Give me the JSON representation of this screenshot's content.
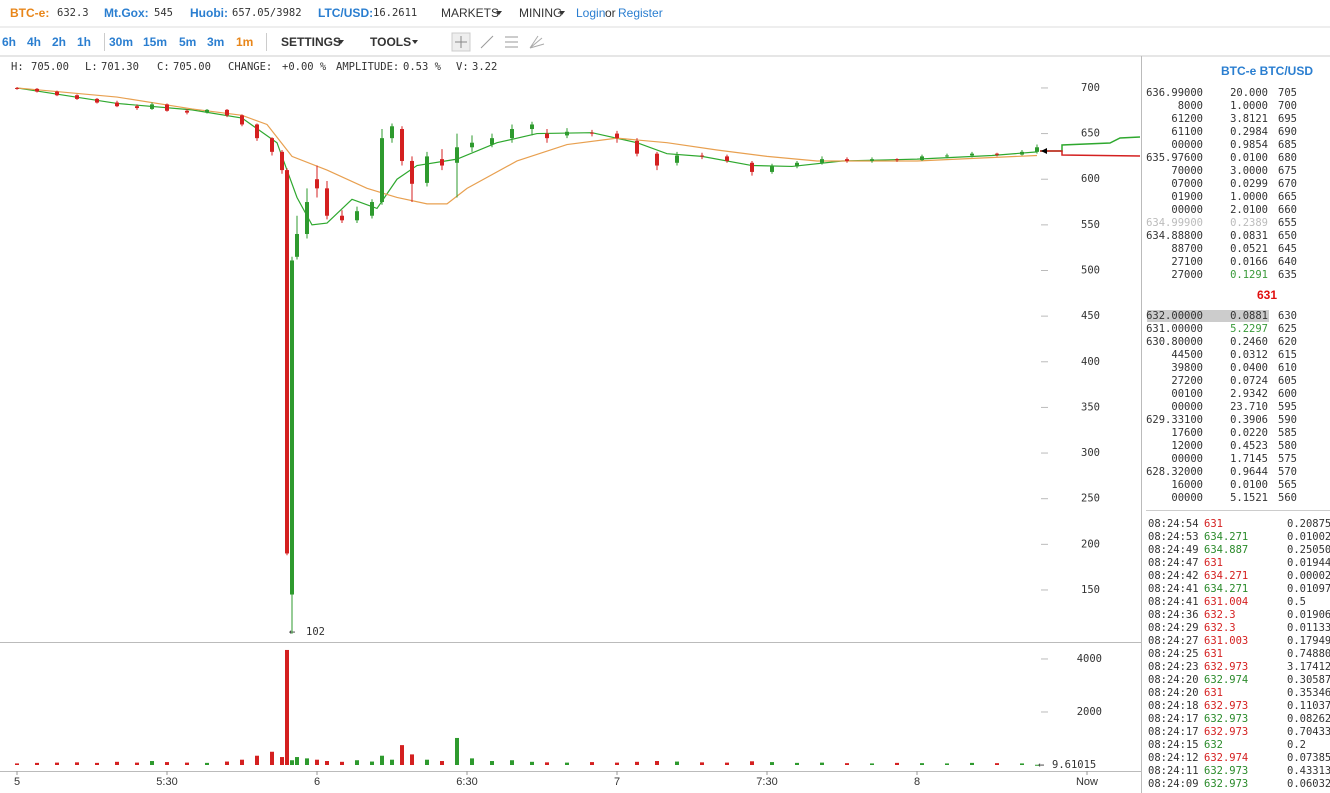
{
  "tickers": [
    {
      "label": "BTC-e:",
      "value": "632.3"
    },
    {
      "label": "Mt.Gox:",
      "value": "545"
    },
    {
      "label": "Huobi:",
      "value": "657.05/3982"
    },
    {
      "label": "LTC/USD:",
      "value": "16.2611"
    }
  ],
  "nav": {
    "markets": "MARKETS",
    "mining": "MINING",
    "login": "Login",
    "or": "or",
    "register": "Register"
  },
  "periods": [
    "6h",
    "4h",
    "2h",
    "1h",
    "30m",
    "15m",
    "5m",
    "3m",
    "1m"
  ],
  "active_period": "1m",
  "settings": "SETTINGS",
  "tools": "TOOLS",
  "info": [
    {
      "label": "H:",
      "value": "705.00"
    },
    {
      "label": "L:",
      "value": "701.30"
    },
    {
      "label": "C:",
      "value": "705.00"
    },
    {
      "label": "CHANGE:",
      "value": "+0.00 %"
    },
    {
      "label": "AMPLITUDE:",
      "value": "0.53 %"
    },
    {
      "label": "V:",
      "value": "3.22"
    }
  ],
  "chart_data": {
    "type": "candlestick",
    "x": [
      0,
      4,
      8,
      12,
      16,
      20,
      24,
      27,
      30,
      34,
      38,
      42,
      45,
      48,
      51,
      53,
      54,
      55,
      56,
      58,
      60,
      62,
      65,
      68,
      71,
      73,
      75,
      77,
      79,
      82,
      85,
      88,
      91,
      95,
      99,
      103,
      106,
      110,
      115,
      120,
      124,
      128,
      132,
      137,
      142,
      147,
      151,
      156,
      161,
      166,
      171,
      176,
      181,
      186,
      191,
      196,
      201,
      204
    ],
    "open": [
      700,
      699,
      696,
      692,
      688,
      684,
      680,
      677,
      682,
      675,
      673,
      676,
      670,
      660,
      645,
      630,
      610,
      145,
      515,
      540,
      600,
      590,
      560,
      555,
      560,
      575,
      645,
      655,
      620,
      596,
      622,
      618,
      635,
      638,
      645,
      655,
      650,
      648,
      651,
      650,
      642,
      628,
      618,
      626,
      625,
      618,
      608,
      614,
      618,
      622,
      620,
      622,
      621,
      625,
      626,
      628,
      627,
      630
    ],
    "close": [
      699,
      696,
      692,
      688,
      684,
      680,
      678,
      682,
      675,
      673,
      676,
      670,
      660,
      645,
      630,
      610,
      190,
      511,
      540,
      575,
      590,
      560,
      555,
      565,
      575,
      645,
      658,
      620,
      595,
      625,
      615,
      635,
      640,
      645,
      655,
      660,
      645,
      652,
      650,
      645,
      628,
      615,
      626,
      625,
      620,
      608,
      614,
      618,
      622,
      620,
      622,
      621,
      625,
      626,
      628,
      627,
      630,
      635
    ],
    "high": [
      701,
      700,
      697,
      693,
      689,
      686,
      682,
      684,
      683,
      677,
      677,
      677,
      671,
      661,
      646,
      632,
      612,
      515,
      560,
      590,
      615,
      598,
      566,
      570,
      578,
      655,
      661,
      658,
      625,
      630,
      633,
      650,
      648,
      650,
      660,
      663,
      655,
      656,
      654,
      653,
      645,
      630,
      630,
      629,
      627,
      620,
      617,
      620,
      625,
      624,
      624,
      623,
      627,
      628,
      630,
      629,
      632,
      638
    ],
    "low": [
      698,
      695,
      691,
      687,
      683,
      679,
      676,
      676,
      674,
      671,
      672,
      668,
      658,
      642,
      626,
      606,
      188,
      102,
      512,
      535,
      580,
      556,
      552,
      552,
      557,
      572,
      640,
      615,
      575,
      592,
      610,
      580,
      630,
      635,
      640,
      648,
      640,
      645,
      647,
      640,
      625,
      610,
      615,
      622,
      618,
      604,
      606,
      612,
      616,
      618,
      618,
      619,
      620,
      623,
      624,
      625,
      626,
      628
    ],
    "volume": [
      60,
      80,
      90,
      100,
      80,
      120,
      90,
      150,
      110,
      90,
      80,
      130,
      200,
      350,
      500,
      300,
      4340,
      180,
      300,
      250,
      200,
      150,
      120,
      180,
      130,
      350,
      200,
      750,
      400,
      200,
      150,
      1020,
      250,
      150,
      180,
      120,
      100,
      90,
      110,
      90,
      120,
      150,
      130,
      100,
      90,
      140,
      110,
      80,
      90,
      70,
      60,
      80,
      70,
      60,
      80,
      70,
      60,
      9.61015
    ],
    "up_color": "#2e9a2e",
    "down_color": "#d42020",
    "ma": [
      {
        "color": "#2ea82e",
        "x": [
          0,
          20,
          35,
          45,
          52,
          56,
          59,
          62,
          67,
          72,
          76,
          80,
          88,
          96,
          104,
          115,
          124,
          130,
          137,
          147,
          155,
          165,
          180,
          195,
          204
        ],
        "values": [
          700,
          683,
          676,
          667,
          640,
          580,
          550,
          552,
          578,
          568,
          600,
          615,
          622,
          640,
          650,
          651,
          640,
          628,
          625,
          615,
          614,
          620,
          622,
          626,
          630
        ]
      },
      {
        "color": "#e8a050",
        "x": [
          0,
          20,
          35,
          45,
          50,
          55,
          62,
          70,
          76,
          82,
          86,
          90,
          100,
          110,
          120,
          130,
          140,
          150,
          160,
          180,
          204
        ],
        "values": [
          700,
          690,
          677,
          670,
          660,
          625,
          610,
          590,
          580,
          573,
          573,
          590,
          620,
          638,
          645,
          640,
          632,
          625,
          620,
          620,
          626
        ]
      }
    ],
    "xlim": [
      -3.4,
      224.6
    ],
    "xticks": [
      {
        "value": 0,
        "label": "5"
      },
      {
        "value": 30,
        "label": "5:30"
      },
      {
        "value": 60,
        "label": "6"
      },
      {
        "value": 90,
        "label": "6:30"
      },
      {
        "value": 120,
        "label": "7"
      },
      {
        "value": 150,
        "label": "7:30"
      },
      {
        "value": 180,
        "label": "8"
      },
      {
        "value": 214,
        "label": "Now"
      }
    ],
    "ylim": [
      93,
      735
    ],
    "yticks": [
      150,
      200,
      250,
      300,
      350,
      400,
      450,
      500,
      550,
      600,
      650,
      700
    ],
    "volume_ylim": [
      0,
      4640
    ],
    "volume_yticks": [
      2000,
      4000
    ]
  },
  "book": {
    "title": "BTC-e BTC/USD",
    "last": "631",
    "asks": [
      [
        "636.99000",
        "20.000",
        705
      ],
      [
        "8000",
        "1.0000",
        700
      ],
      [
        "61200",
        "3.8121",
        695
      ],
      [
        "61100",
        "0.2984",
        690
      ],
      [
        "00000",
        "0.9854",
        685
      ],
      [
        "635.97600",
        "0.0100",
        680
      ],
      [
        "70000",
        "3.0000",
        675
      ],
      [
        "07000",
        "0.0299",
        670
      ],
      [
        "01900",
        "1.0000",
        665
      ],
      [
        "00000",
        "2.0100",
        660
      ],
      [
        "634.99900",
        "0.2389",
        655
      ],
      [
        "634.88800",
        "0.0831",
        650
      ],
      [
        "88700",
        "0.0521",
        645
      ],
      [
        "27100",
        "0.0166",
        640
      ],
      [
        "27000",
        "0.1291",
        635
      ]
    ],
    "bids": [
      [
        "632.00000",
        "0.0881",
        630
      ],
      [
        "631.00000",
        "5.2297",
        625
      ],
      [
        "630.80000",
        "0.2460",
        620
      ],
      [
        "44500",
        "0.0312",
        615
      ],
      [
        "39800",
        "0.0400",
        610
      ],
      [
        "27200",
        "0.0724",
        605
      ],
      [
        "00100",
        "2.9342",
        600
      ],
      [
        "00000",
        "23.710",
        595
      ],
      [
        "629.33100",
        "0.3906",
        590
      ],
      [
        "17600",
        "0.0220",
        585
      ],
      [
        "12000",
        "0.4523",
        580
      ],
      [
        "00000",
        "1.7145",
        575
      ],
      [
        "628.32000",
        "0.9644",
        570
      ],
      [
        "16000",
        "0.0100",
        565
      ],
      [
        "00000",
        "5.1521",
        560
      ]
    ]
  },
  "trades": [
    {
      "time": "08:24:54",
      "price": "631",
      "amount": "0.20875",
      "side": "sell"
    },
    {
      "time": "08:24:53",
      "price": "634.271",
      "amount": "0.01002",
      "side": "buy"
    },
    {
      "time": "08:24:49",
      "price": "634.887",
      "amount": "0.25050",
      "side": "buy"
    },
    {
      "time": "08:24:47",
      "price": "631",
      "amount": "0.01944",
      "side": "sell"
    },
    {
      "time": "08:24:42",
      "price": "634.271",
      "amount": "0.00002",
      "side": "sell"
    },
    {
      "time": "08:24:41",
      "price": "634.271",
      "amount": "0.01097",
      "side": "buy"
    },
    {
      "time": "08:24:41",
      "price": "631.004",
      "amount": "0.5",
      "side": "sell"
    },
    {
      "time": "08:24:36",
      "price": "632.3",
      "amount": "0.01906",
      "side": "sell"
    },
    {
      "time": "08:24:29",
      "price": "632.3",
      "amount": "0.01133",
      "side": "sell"
    },
    {
      "time": "08:24:27",
      "price": "631.003",
      "amount": "0.17949",
      "side": "sell"
    },
    {
      "time": "08:24:25",
      "price": "631",
      "amount": "0.74880",
      "side": "sell"
    },
    {
      "time": "08:24:23",
      "price": "632.973",
      "amount": "3.17412",
      "side": "sell"
    },
    {
      "time": "08:24:20",
      "price": "632.974",
      "amount": "0.30587",
      "side": "buy"
    },
    {
      "time": "08:24:20",
      "price": "631",
      "amount": "0.35346",
      "side": "sell"
    },
    {
      "time": "08:24:18",
      "price": "632.973",
      "amount": "0.11037",
      "side": "sell"
    },
    {
      "time": "08:24:17",
      "price": "632.973",
      "amount": "0.08262",
      "side": "buy"
    },
    {
      "time": "08:24:17",
      "price": "632.973",
      "amount": "0.70433",
      "side": "sell"
    },
    {
      "time": "08:24:15",
      "price": "632",
      "amount": "0.2",
      "side": "buy"
    },
    {
      "time": "08:24:12",
      "price": "632.974",
      "amount": "0.07385",
      "side": "sell"
    },
    {
      "time": "08:24:11",
      "price": "632.973",
      "amount": "0.43313",
      "side": "buy"
    },
    {
      "time": "08:24:09",
      "price": "632.973",
      "amount": "0.06032",
      "side": "buy"
    }
  ]
}
